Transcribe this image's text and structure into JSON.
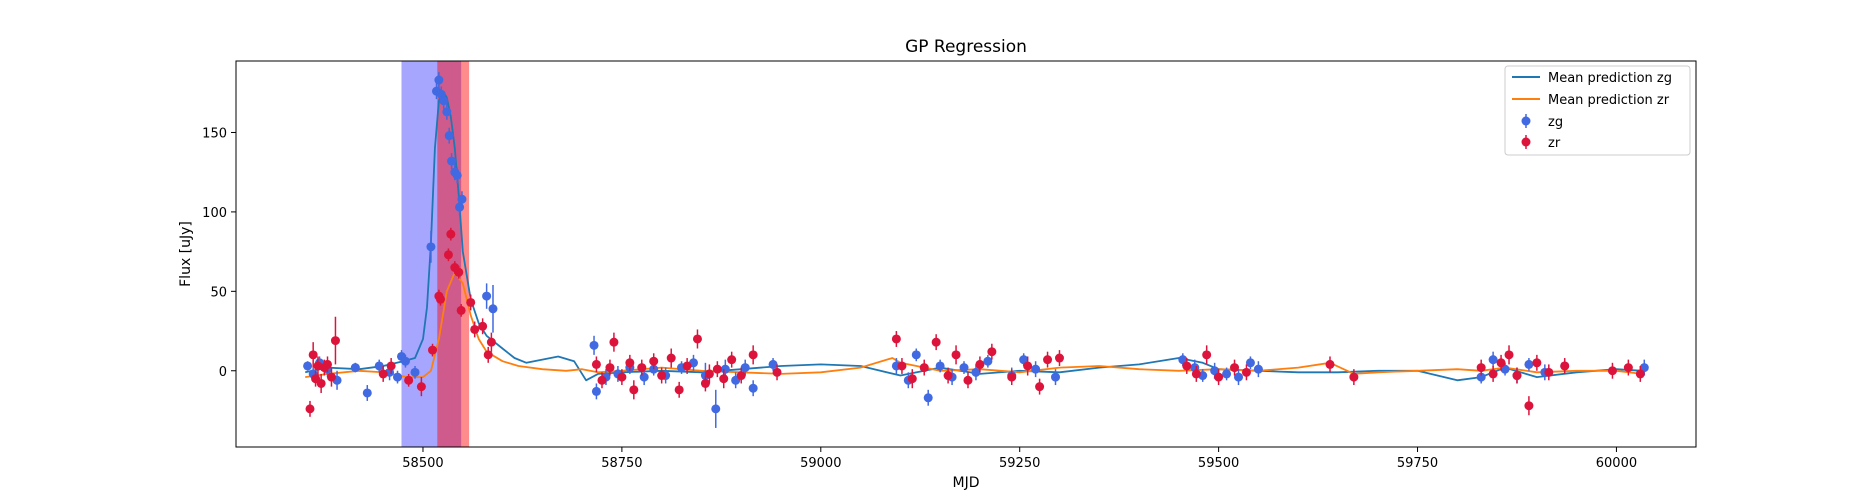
{
  "chart_data": {
    "type": "scatter",
    "title": "GP Regression",
    "xlabel": "MJD",
    "ylabel": "Flux [uJy]",
    "xlim": [
      58265,
      60100
    ],
    "ylim": [
      -48,
      195
    ],
    "xticks": [
      58500,
      58750,
      59000,
      59250,
      59500,
      59750,
      60000
    ],
    "yticks": [
      0,
      50,
      100,
      150
    ],
    "grid": false,
    "legend_position": "upper-right",
    "shaded_regions": [
      {
        "color": "#0000ff",
        "opacity": 0.35,
        "x_start": 58473,
        "x_end": 58548
      },
      {
        "color": "#ff0000",
        "opacity": 0.45,
        "x_start": 58518,
        "x_end": 58558
      }
    ],
    "series": [
      {
        "name": "Mean prediction zg",
        "kind": "line",
        "color": "#1f77b4",
        "x": [
          58352,
          58380,
          58420,
          58450,
          58475,
          58490,
          58500,
          58505,
          58510,
          58515,
          58520,
          58525,
          58530,
          58535,
          58540,
          58545,
          58550,
          58560,
          58570,
          58580,
          58590,
          58600,
          58615,
          58630,
          58650,
          58670,
          58690,
          58705,
          58720,
          58750,
          58800,
          58850,
          58900,
          58950,
          59000,
          59050,
          59100,
          59150,
          59200,
          59250,
          59300,
          59350,
          59400,
          59450,
          59480,
          59500,
          59550,
          59600,
          59650,
          59700,
          59750,
          59800,
          59830,
          59860,
          59900,
          59950,
          60000,
          60032
        ],
        "y": [
          -1,
          2,
          1,
          3,
          6,
          8,
          20,
          40,
          80,
          140,
          170,
          176,
          172,
          160,
          140,
          110,
          75,
          45,
          30,
          22,
          18,
          14,
          8,
          5,
          7,
          9,
          6,
          -6,
          -2,
          -1,
          0,
          -1,
          1,
          3,
          4,
          3,
          -3,
          2,
          -2,
          0,
          -1,
          2,
          4,
          8,
          5,
          1,
          0,
          -1,
          -1,
          0,
          0,
          -6,
          -4,
          2,
          -4,
          -1,
          1,
          0
        ]
      },
      {
        "name": "Mean prediction zr",
        "kind": "line",
        "color": "#ff7f0e",
        "x": [
          58352,
          58380,
          58420,
          58450,
          58480,
          58500,
          58510,
          58520,
          58530,
          58540,
          58550,
          58560,
          58570,
          58580,
          58600,
          58620,
          58650,
          58680,
          58700,
          58720,
          58750,
          58800,
          58850,
          58900,
          58950,
          59000,
          59050,
          59090,
          59100,
          59150,
          59200,
          59250,
          59300,
          59350,
          59400,
          59450,
          59500,
          59550,
          59600,
          59640,
          59670,
          59700,
          59750,
          59800,
          59830,
          59860,
          59900,
          59950,
          60000,
          60032
        ],
        "y": [
          -4,
          -2,
          0,
          -1,
          -4,
          -4,
          0,
          20,
          50,
          62,
          55,
          35,
          20,
          12,
          6,
          3,
          1,
          0,
          1,
          -1,
          0,
          2,
          0,
          -1,
          -2,
          -1,
          2,
          8,
          5,
          0,
          1,
          -1,
          2,
          3,
          1,
          0,
          1,
          0,
          2,
          5,
          -2,
          -1,
          0,
          1,
          0,
          2,
          -1,
          0,
          0,
          -2
        ]
      },
      {
        "name": "zg",
        "kind": "errorbar",
        "color": "#4169e1",
        "x": [
          58355,
          58362,
          58370,
          58380,
          58392,
          58415,
          58430,
          58445,
          58458,
          58468,
          58473,
          58478,
          58490,
          58510,
          58517,
          58520,
          58523,
          58526,
          58530,
          58533,
          58536,
          58540,
          58543,
          58546,
          58549,
          58580,
          58588,
          58715,
          58718,
          58730,
          58745,
          58760,
          58778,
          58790,
          58805,
          58825,
          58840,
          58855,
          58868,
          58880,
          58893,
          58905,
          58915,
          58940,
          59095,
          59110,
          59120,
          59135,
          59150,
          59165,
          59180,
          59195,
          59210,
          59240,
          59255,
          59270,
          59295,
          59455,
          59470,
          59480,
          59495,
          59510,
          59525,
          59540,
          59550,
          59830,
          59845,
          59860,
          59875,
          59890,
          59910,
          59935,
          60035
        ],
        "y": [
          3,
          -2,
          5,
          1,
          -6,
          2,
          -14,
          3,
          -1,
          -4,
          9,
          6,
          -1,
          78,
          176,
          183,
          174,
          170,
          163,
          148,
          132,
          125,
          123,
          103,
          108,
          47,
          39,
          16,
          -13,
          -4,
          -2,
          2,
          -4,
          1,
          -3,
          2,
          5,
          -3,
          -24,
          1,
          -6,
          2,
          -11,
          4,
          3,
          -6,
          10,
          -17,
          3,
          -4,
          2,
          -1,
          6,
          -3,
          7,
          1,
          -4,
          7,
          2,
          -3,
          0,
          -2,
          -4,
          5,
          1,
          -4,
          7,
          1,
          -3,
          4,
          -1,
          3,
          2
        ],
        "yerr": [
          3,
          4,
          4,
          5,
          6,
          3,
          5,
          4,
          5,
          4,
          4,
          4,
          4,
          10,
          5,
          5,
          5,
          5,
          5,
          5,
          5,
          5,
          5,
          5,
          5,
          8,
          15,
          6,
          5,
          5,
          5,
          4,
          5,
          4,
          5,
          4,
          5,
          8,
          12,
          6,
          5,
          5,
          5,
          4,
          5,
          5,
          4,
          5,
          4,
          5,
          4,
          5,
          4,
          5,
          4,
          5,
          5,
          4,
          5,
          4,
          5,
          4,
          5,
          4,
          5,
          4,
          5,
          4,
          5,
          4,
          5,
          4,
          5
        ]
      },
      {
        "name": "zr",
        "kind": "errorbar",
        "color": "#dc143c",
        "x": [
          58358,
          58362,
          58365,
          58368,
          58372,
          58376,
          58380,
          58385,
          58390,
          58450,
          58460,
          58482,
          58498,
          58512,
          58520,
          58522,
          58532,
          58535,
          58540,
          58545,
          58548,
          58560,
          58565,
          58575,
          58582,
          58586,
          58718,
          58725,
          58735,
          58740,
          58750,
          58760,
          58765,
          58775,
          58790,
          58800,
          58812,
          58822,
          58832,
          58845,
          58855,
          58860,
          58870,
          58878,
          58888,
          58900,
          58915,
          58945,
          59095,
          59102,
          59115,
          59130,
          59145,
          59160,
          59170,
          59185,
          59200,
          59215,
          59240,
          59260,
          59275,
          59285,
          59300,
          59460,
          59472,
          59485,
          59500,
          59520,
          59535,
          59640,
          59670,
          59830,
          59845,
          59855,
          59865,
          59875,
          59890,
          59900,
          59915,
          59935,
          59995,
          60015,
          60030
        ],
        "y": [
          -24,
          10,
          -5,
          3,
          -8,
          2,
          4,
          -4,
          19,
          -2,
          3,
          -6,
          -10,
          13,
          47,
          45,
          73,
          86,
          65,
          62,
          38,
          43,
          26,
          28,
          10,
          18,
          4,
          -6,
          2,
          18,
          -4,
          5,
          -12,
          2,
          6,
          -3,
          8,
          -12,
          3,
          20,
          -8,
          -2,
          1,
          -5,
          7,
          -3,
          10,
          -1,
          20,
          3,
          -5,
          2,
          18,
          -3,
          10,
          -6,
          4,
          12,
          -4,
          3,
          -10,
          7,
          8,
          3,
          -2,
          10,
          -4,
          2,
          -1,
          4,
          -4,
          2,
          -2,
          5,
          10,
          -3,
          -22,
          5,
          -1,
          3,
          0,
          2,
          -2
        ],
        "yerr": [
          5,
          8,
          5,
          6,
          6,
          5,
          5,
          6,
          15,
          5,
          5,
          4,
          6,
          4,
          4,
          4,
          4,
          4,
          4,
          4,
          4,
          5,
          5,
          5,
          5,
          6,
          5,
          5,
          5,
          6,
          5,
          5,
          6,
          5,
          5,
          5,
          6,
          5,
          5,
          6,
          5,
          6,
          5,
          6,
          5,
          5,
          6,
          5,
          5,
          5,
          6,
          5,
          5,
          5,
          6,
          5,
          5,
          5,
          5,
          6,
          5,
          5,
          5,
          5,
          5,
          6,
          5,
          5,
          5,
          5,
          5,
          5,
          5,
          5,
          6,
          5,
          6,
          5,
          5,
          5,
          5,
          5,
          5
        ]
      }
    ]
  }
}
